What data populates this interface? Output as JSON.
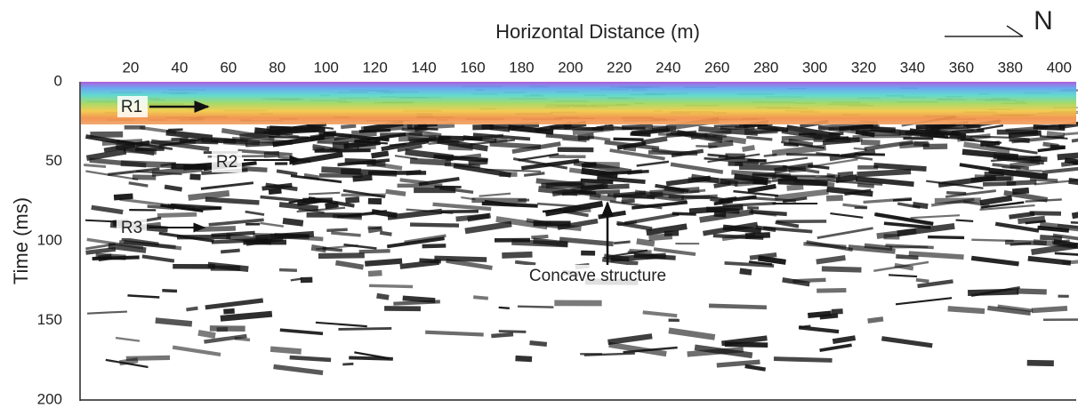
{
  "chart_data": {
    "type": "section",
    "title": "Horizontal Distance (m)",
    "ylabel": "Time (ms)",
    "north_label": "N",
    "xlim": [
      0,
      407
    ],
    "xticks": [
      20,
      40,
      60,
      80,
      100,
      120,
      140,
      160,
      180,
      200,
      220,
      240,
      260,
      280,
      300,
      320,
      340,
      360,
      380,
      400
    ],
    "ylim": [
      0,
      200
    ],
    "yticks": [
      0,
      50,
      100,
      150,
      200
    ],
    "annotations": [
      "R1",
      "R2",
      "R3",
      "Concave structure"
    ]
  }
}
